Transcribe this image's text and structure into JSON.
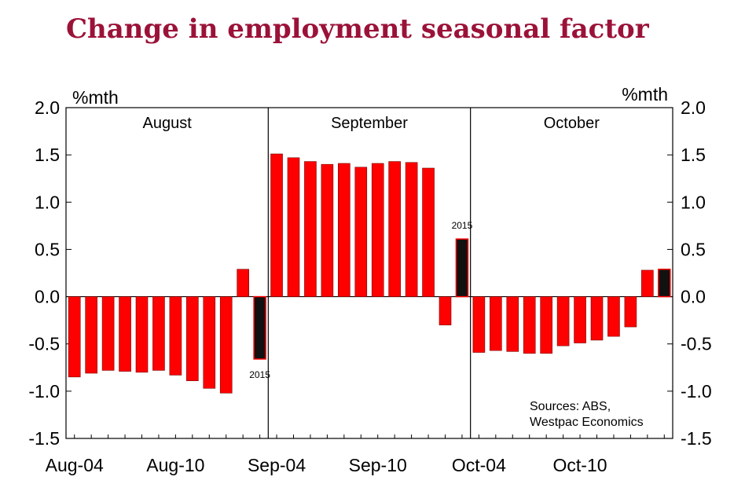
{
  "chart_data": {
    "type": "bar",
    "title": "Change in employment seasonal factor",
    "ylabel_left": "%mth",
    "ylabel_right": "%mth",
    "ylim": [
      -1.5,
      2.0
    ],
    "yticks": [
      2.0,
      1.5,
      1.0,
      0.5,
      0.0,
      -0.5,
      -1.0,
      -1.5
    ],
    "ytick_labels": [
      "2.0",
      "1.5",
      "1.0",
      "0.5",
      "0.0",
      "-0.5",
      "-1.0",
      "-1.5"
    ],
    "xtick_labels": [
      "Aug-04",
      "Aug-10",
      "Sep-04",
      "Sep-10",
      "Oct-04",
      "Oct-10"
    ],
    "panels": [
      {
        "name": "August",
        "categories": [
          "Aug-04",
          "Aug-05",
          "Aug-06",
          "Aug-07",
          "Aug-08",
          "Aug-09",
          "Aug-10",
          "Aug-11",
          "Aug-12",
          "Aug-13",
          "Aug-14",
          "Aug-15"
        ],
        "values": [
          -0.85,
          -0.81,
          -0.78,
          -0.79,
          -0.8,
          -0.78,
          -0.83,
          -0.89,
          -0.97,
          -1.02,
          0.29,
          -0.66
        ],
        "highlight_index": 11,
        "highlight_label": "2015"
      },
      {
        "name": "September",
        "categories": [
          "Sep-04",
          "Sep-05",
          "Sep-06",
          "Sep-07",
          "Sep-08",
          "Sep-09",
          "Sep-10",
          "Sep-11",
          "Sep-12",
          "Sep-13",
          "Sep-14",
          "Sep-15"
        ],
        "values": [
          1.51,
          1.47,
          1.43,
          1.4,
          1.41,
          1.37,
          1.41,
          1.43,
          1.42,
          1.36,
          -0.3,
          0.61
        ],
        "highlight_index": 11,
        "highlight_label": "2015"
      },
      {
        "name": "October",
        "categories": [
          "Oct-04",
          "Oct-05",
          "Oct-06",
          "Oct-07",
          "Oct-08",
          "Oct-09",
          "Oct-10",
          "Oct-11",
          "Oct-12",
          "Oct-13",
          "Oct-14",
          "Oct-15"
        ],
        "values": [
          -0.59,
          -0.57,
          -0.58,
          -0.6,
          -0.6,
          -0.52,
          -0.49,
          -0.46,
          -0.42,
          -0.32,
          0.28,
          0.29
        ],
        "highlight_index": 11,
        "highlight_label": ""
      }
    ],
    "colors": {
      "bar": "#ff0000",
      "highlight": "#111111",
      "outline": "#7a0000"
    },
    "source_lines": [
      "Sources: ABS,",
      "Westpac Economics"
    ]
  }
}
